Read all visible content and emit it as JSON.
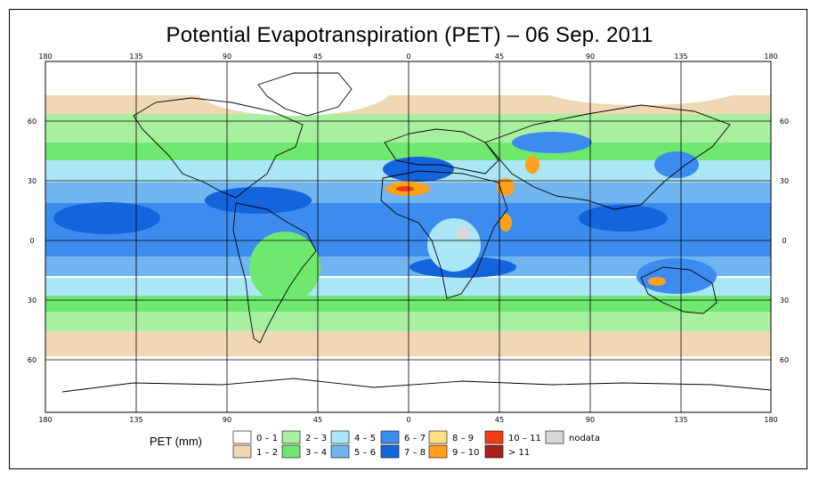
{
  "title": "Potential Evapotranspiration (PET) – 06 Sep. 2011",
  "map": {
    "lon_ticks_top": [
      "180",
      "135",
      "90",
      "45",
      "0",
      "45",
      "90",
      "135",
      "180"
    ],
    "lon_ticks_bottom": [
      "180",
      "135",
      "90",
      "45",
      "0",
      "45",
      "90",
      "135",
      "180"
    ],
    "lat_ticks_left": [
      "60",
      "30",
      "0",
      "30",
      "60"
    ],
    "lat_ticks_right": [
      "60",
      "30",
      "0",
      "30",
      "60"
    ]
  },
  "legend": {
    "title": "PET (mm)",
    "items": [
      {
        "label": "0 – 1",
        "color": "#ffffff"
      },
      {
        "label": "1 – 2",
        "color": "#f0d8b4"
      },
      {
        "label": "2 – 3",
        "color": "#a8f0a0"
      },
      {
        "label": "3 – 4",
        "color": "#6ee86e"
      },
      {
        "label": "4 – 5",
        "color": "#aae6f5"
      },
      {
        "label": "5 – 6",
        "color": "#70b4f0"
      },
      {
        "label": "6 – 7",
        "color": "#3c8cf0"
      },
      {
        "label": "7 – 8",
        "color": "#1464dc"
      },
      {
        "label": "8 – 9",
        "color": "#ffe082"
      },
      {
        "label": "9 – 10",
        "color": "#ffa01e"
      },
      {
        "label": "10 – 11",
        "color": "#f03c14"
      },
      {
        "label": "> 11",
        "color": "#aa1e1e"
      },
      {
        "label": "nodata",
        "color": "#d8d8d8"
      }
    ]
  }
}
